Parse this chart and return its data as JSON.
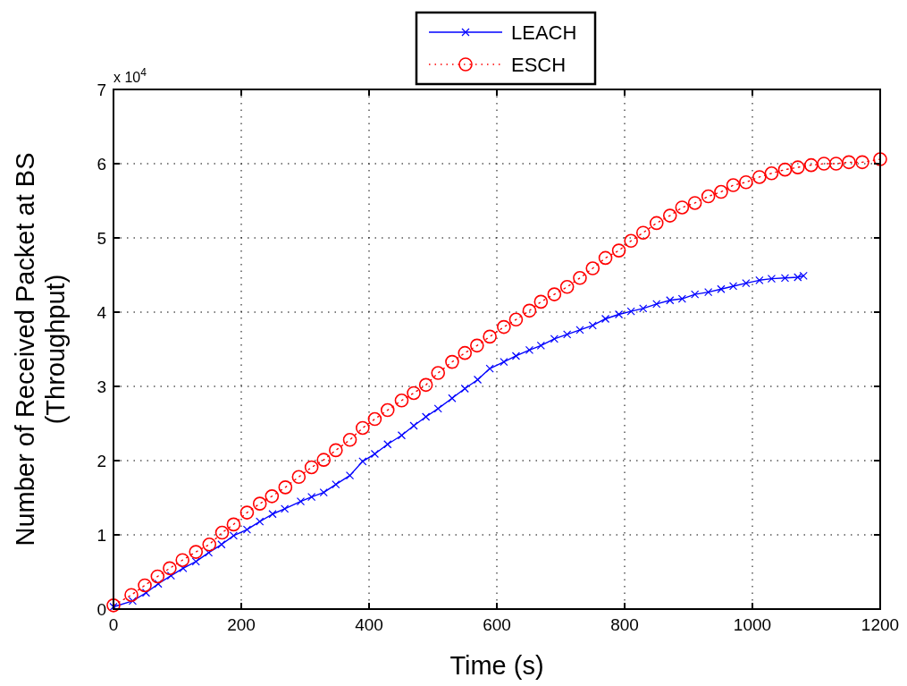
{
  "chart_data": {
    "type": "line",
    "xlabel": "Time (s)",
    "ylabel": "Number of Received Packet at BS\n(Throughput)",
    "annotations": [
      "x 10$^{4}$"
    ],
    "xlim": [
      0,
      1200
    ],
    "xticks": [
      0,
      200,
      400,
      600,
      800,
      1000,
      1200
    ],
    "ylim": [
      0,
      7
    ],
    "yticks": [
      0,
      1,
      2,
      3,
      4,
      5,
      6,
      7
    ],
    "grid": true,
    "legend": "top",
    "series": [
      {
        "name": "LEACH",
        "color": "#0000ff",
        "marker": "cross",
        "line_style": "solid",
        "x": [
          0,
          30,
          51,
          70,
          90,
          109,
          129,
          149,
          169,
          188,
          209,
          229,
          249,
          268,
          293,
          310,
          329,
          348,
          370,
          390,
          409,
          429,
          451,
          470,
          489,
          508,
          530,
          550,
          570,
          589,
          611,
          630,
          651,
          669,
          690,
          710,
          730,
          750,
          770,
          791,
          810,
          829,
          850,
          871,
          890,
          910,
          931,
          951,
          970,
          990,
          1011,
          1030,
          1051,
          1071,
          1080
        ],
        "values": [
          0.03,
          0.11,
          0.22,
          0.34,
          0.45,
          0.55,
          0.64,
          0.76,
          0.87,
          0.99,
          1.07,
          1.18,
          1.28,
          1.35,
          1.45,
          1.51,
          1.57,
          1.68,
          1.8,
          1.99,
          2.09,
          2.22,
          2.34,
          2.47,
          2.59,
          2.7,
          2.84,
          2.97,
          3.09,
          3.24,
          3.33,
          3.41,
          3.49,
          3.55,
          3.64,
          3.7,
          3.76,
          3.82,
          3.91,
          3.97,
          4.01,
          4.05,
          4.11,
          4.16,
          4.18,
          4.24,
          4.27,
          4.31,
          4.35,
          4.39,
          4.43,
          4.45,
          4.46,
          4.47,
          4.49
        ]
      },
      {
        "name": "ESCH",
        "color": "#ff0000",
        "marker": "circle",
        "line_style": "dotted",
        "x": [
          0,
          28,
          49,
          69,
          88,
          108,
          129,
          150,
          170,
          188,
          209,
          229,
          248,
          269,
          290,
          310,
          329,
          348,
          370,
          390,
          409,
          429,
          451,
          470,
          489,
          508,
          530,
          550,
          569,
          589,
          611,
          630,
          651,
          669,
          690,
          710,
          730,
          750,
          770,
          791,
          810,
          829,
          850,
          871,
          890,
          910,
          931,
          951,
          970,
          990,
          1011,
          1030,
          1051,
          1071,
          1092,
          1112,
          1131,
          1151,
          1172,
          1200
        ],
        "values": [
          0.05,
          0.19,
          0.32,
          0.44,
          0.55,
          0.66,
          0.77,
          0.87,
          1.03,
          1.14,
          1.3,
          1.42,
          1.52,
          1.64,
          1.78,
          1.91,
          2.01,
          2.14,
          2.28,
          2.44,
          2.56,
          2.68,
          2.81,
          2.91,
          3.02,
          3.18,
          3.33,
          3.45,
          3.55,
          3.67,
          3.8,
          3.9,
          4.02,
          4.14,
          4.24,
          4.34,
          4.46,
          4.59,
          4.73,
          4.83,
          4.96,
          5.07,
          5.2,
          5.3,
          5.41,
          5.47,
          5.56,
          5.62,
          5.71,
          5.75,
          5.82,
          5.87,
          5.92,
          5.95,
          5.98,
          6.0,
          6.0,
          6.02,
          6.02,
          6.06
        ]
      }
    ]
  }
}
